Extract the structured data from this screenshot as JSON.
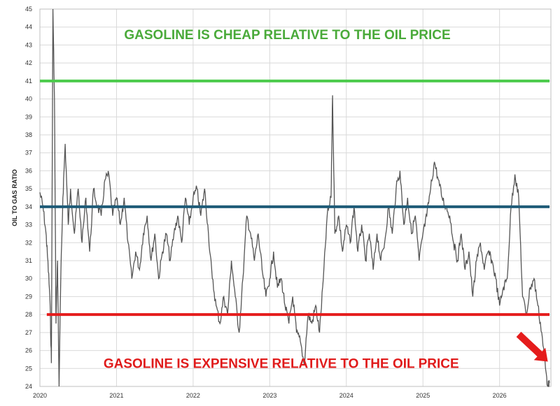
{
  "chart_data": {
    "type": "line",
    "title": "",
    "xlabel": "",
    "ylabel": "OIL TO GAS RATIO",
    "ylim": [
      24,
      45
    ],
    "xlim": [
      2020,
      2026.67
    ],
    "y_ticks": [
      "24",
      "25",
      "26",
      "27",
      "28",
      "29",
      "30",
      "31",
      "32",
      "33",
      "34",
      "35",
      "36",
      "37",
      "38",
      "39",
      "40",
      "41",
      "42",
      "43",
      "44",
      "45"
    ],
    "x_ticks": [
      "2020",
      "2021",
      "2022",
      "2023",
      "2024",
      "2025",
      "2026"
    ],
    "grid": true,
    "legend": "none",
    "colors": {
      "series": "#555555",
      "cheap_line": "#4ccb4c",
      "mid_line": "#1f5c78",
      "expensive_line": "#e51c1c",
      "arrow": "#e51c1c"
    },
    "reference_lines": [
      {
        "y": 41,
        "color": "#4ccb4c"
      },
      {
        "y": 34,
        "color": "#1f5c78"
      },
      {
        "y": 28,
        "color": "#e51c1c"
      }
    ],
    "annotations": [
      {
        "text": "GASOLINE IS CHEAP RELATIVE TO THE OIL PRICE",
        "color": "#4aaa3a",
        "x": 2021.1,
        "y": 43.6
      },
      {
        "text": "GASOLINE IS EXPENSIVE RELATIVE TO THE OIL PRICE",
        "color": "#e01b1b",
        "x": 2020.83,
        "y": 25.3
      }
    ],
    "series": [
      {
        "x": [
          2020.0,
          2020.04,
          2020.08,
          2020.1,
          2020.13,
          2020.15,
          2020.17,
          2020.19,
          2020.21,
          2020.23,
          2020.25,
          2020.27,
          2020.3,
          2020.33,
          2020.37,
          2020.4,
          2020.45,
          2020.5,
          2020.55,
          2020.6,
          2020.65,
          2020.7,
          2020.75,
          2020.8,
          2020.85,
          2020.9,
          2020.95,
          2021.0,
          2021.05,
          2021.1,
          2021.15,
          2021.2,
          2021.25,
          2021.3,
          2021.35,
          2021.4,
          2021.45,
          2021.5,
          2021.55,
          2021.6,
          2021.65,
          2021.7,
          2021.75,
          2021.8,
          2021.85,
          2021.9,
          2021.95,
          2022.0,
          2022.05,
          2022.1,
          2022.15,
          2022.2,
          2022.25,
          2022.3,
          2022.35,
          2022.4,
          2022.45,
          2022.5,
          2022.55,
          2022.6,
          2022.65,
          2022.7,
          2022.75,
          2022.8,
          2022.85,
          2022.9,
          2022.95,
          2023.0,
          2023.05,
          2023.1,
          2023.15,
          2023.2,
          2023.25,
          2023.3,
          2023.35,
          2023.4,
          2023.45,
          2023.5,
          2023.55,
          2023.6,
          2023.65,
          2023.7,
          2023.75,
          2023.8,
          2023.82,
          2023.85,
          2023.9,
          2023.95,
          2024.0,
          2024.05,
          2024.1,
          2024.15,
          2024.2,
          2024.25,
          2024.3,
          2024.35,
          2024.4,
          2024.45,
          2024.5,
          2024.55,
          2024.6,
          2024.65,
          2024.7,
          2024.75,
          2024.8,
          2024.85,
          2024.9,
          2024.95,
          2025.0,
          2025.05,
          2025.1,
          2025.15,
          2025.2,
          2025.25,
          2025.3,
          2025.35,
          2025.4,
          2025.45,
          2025.5,
          2025.55,
          2025.6,
          2025.65,
          2025.7,
          2025.75,
          2025.8,
          2025.85,
          2025.9,
          2025.95,
          2026.0,
          2026.05,
          2026.1,
          2026.15,
          2026.2,
          2026.25,
          2026.3,
          2026.35,
          2026.4,
          2026.45,
          2026.5,
          2026.55,
          2026.6,
          2026.63,
          2026.65
        ],
        "y": [
          34.8,
          34.0,
          32.5,
          31.2,
          29.0,
          25.3,
          45.5,
          40.0,
          27.5,
          31.0,
          24.0,
          29.5,
          34.5,
          37.5,
          33.0,
          35.0,
          32.5,
          35.0,
          32.0,
          34.5,
          31.5,
          35.0,
          34.0,
          33.5,
          35.5,
          35.8,
          33.5,
          34.5,
          33.0,
          34.5,
          32.0,
          30.0,
          31.5,
          30.5,
          32.5,
          33.5,
          31.0,
          32.5,
          30.0,
          31.5,
          32.5,
          31.0,
          32.5,
          33.5,
          32.0,
          34.5,
          33.0,
          34.5,
          35.0,
          33.5,
          35.0,
          32.5,
          30.0,
          28.5,
          27.5,
          29.0,
          28.0,
          31.0,
          29.0,
          27.0,
          30.0,
          33.5,
          32.5,
          31.0,
          32.5,
          30.5,
          29.0,
          30.0,
          31.5,
          29.5,
          30.0,
          28.5,
          27.5,
          29.0,
          27.0,
          26.5,
          25.2,
          28.0,
          27.5,
          28.5,
          27.0,
          30.0,
          33.5,
          34.5,
          40.2,
          32.5,
          33.5,
          31.5,
          33.0,
          32.0,
          34.0,
          31.5,
          33.0,
          31.0,
          32.5,
          30.5,
          32.5,
          31.0,
          32.0,
          34.0,
          32.5,
          35.0,
          36.0,
          33.0,
          34.5,
          32.5,
          33.5,
          31.0,
          32.5,
          33.5,
          35.0,
          36.5,
          35.5,
          34.5,
          34.0,
          33.5,
          32.0,
          31.0,
          32.5,
          30.5,
          31.5,
          29.0,
          31.0,
          32.0,
          30.5,
          31.5,
          31.0,
          30.0,
          28.5,
          29.5,
          30.0,
          34.0,
          35.8,
          34.5,
          29.0,
          28.0,
          29.5,
          30.0,
          28.5,
          27.0,
          25.0,
          24.0,
          24.2
        ]
      }
    ]
  }
}
